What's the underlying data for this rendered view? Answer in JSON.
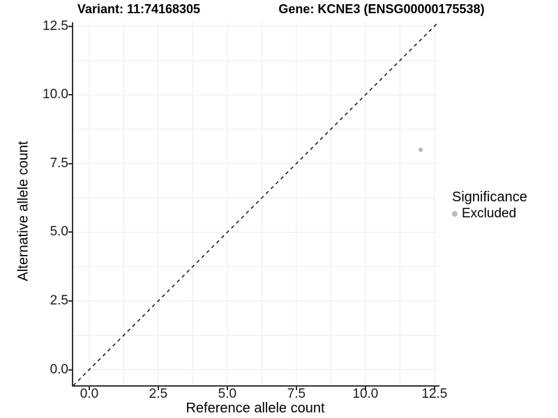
{
  "chart_data": {
    "type": "scatter",
    "titles": [
      {
        "id": "variant",
        "text": "Variant: 11:74168305"
      },
      {
        "id": "gene",
        "text": "Gene: KCNE3 (ENSG00000175538)"
      }
    ],
    "x_axis": {
      "label": "Reference allele count",
      "tick_values": [
        0,
        2.5,
        5,
        7.5,
        10,
        12.5
      ],
      "tick_labels": [
        "0.0",
        "2.5",
        "5.0",
        "7.5",
        "10.0",
        "12.5"
      ],
      "range": [
        -0.58,
        12.63
      ]
    },
    "y_axis": {
      "label": "Alternative allele count",
      "tick_values": [
        0,
        2.5,
        5,
        7.5,
        10,
        12.5
      ],
      "tick_labels": [
        "0.0",
        "2.5",
        "5.0",
        "7.5",
        "10.0",
        "12.5"
      ],
      "range": [
        -0.57,
        12.64
      ]
    },
    "grid": {
      "show": true,
      "color": "#ebebeb",
      "step": 1.25,
      "min": 0,
      "max": 12.5
    },
    "identity_line": {
      "slope": 1,
      "intercept": 0,
      "style": "dashed",
      "color": "#000000"
    },
    "series": [
      {
        "name": "Excluded",
        "color": "#bcbcbc",
        "points": [
          {
            "x": 12,
            "y": 8
          }
        ]
      }
    ],
    "legend": {
      "title": "Significance",
      "position": "right",
      "items": [
        {
          "label": "Excluded",
          "color": "#bcbcbc"
        }
      ]
    }
  }
}
